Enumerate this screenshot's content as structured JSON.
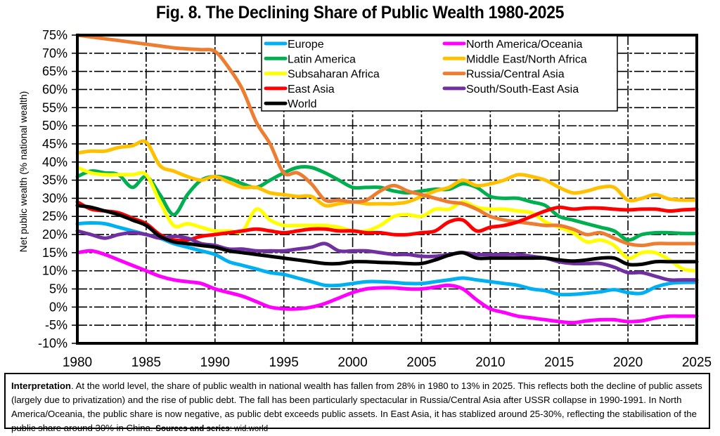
{
  "chart_data": {
    "type": "line",
    "title": "Fig. 8. The Declining Share of Public Wealth 1980-2025",
    "xlabel": "",
    "ylabel": "Net public wealth (% national wealth)",
    "xlim": [
      1980,
      2025
    ],
    "ylim": [
      -10,
      75
    ],
    "x_ticks": [
      1980,
      1985,
      1990,
      1995,
      2000,
      2005,
      2010,
      2015,
      2020,
      2025
    ],
    "x_tick_labels": [
      "1980",
      "1985",
      "1990",
      "1995",
      "2000",
      "2005",
      "2010",
      "2015",
      "2020",
      "2025"
    ],
    "y_ticks": [
      -10,
      -5,
      0,
      5,
      10,
      15,
      20,
      25,
      30,
      35,
      40,
      45,
      50,
      55,
      60,
      65,
      70,
      75
    ],
    "y_tick_labels": [
      "-10%",
      "-5%",
      "0%",
      "5%",
      "10%",
      "15%",
      "20%",
      "25%",
      "30%",
      "35%",
      "40%",
      "45%",
      "50%",
      "55%",
      "60%",
      "65%",
      "70%",
      "75%"
    ],
    "grid": true,
    "legend_position": "top-center",
    "x": [
      1980,
      1981,
      1982,
      1983,
      1984,
      1985,
      1986,
      1987,
      1988,
      1989,
      1990,
      1991,
      1992,
      1993,
      1994,
      1995,
      1996,
      1997,
      1998,
      1999,
      2000,
      2001,
      2002,
      2003,
      2004,
      2005,
      2006,
      2007,
      2008,
      2009,
      2010,
      2011,
      2012,
      2013,
      2014,
      2015,
      2016,
      2017,
      2018,
      2019,
      2020,
      2021,
      2022,
      2023,
      2024,
      2025
    ],
    "series": [
      {
        "name": "Europe",
        "color": "#00b0f0",
        "values": [
          23,
          23.2,
          23,
          22,
          21,
          20,
          19,
          17.5,
          16.5,
          15.5,
          14.5,
          12.5,
          11.5,
          10.5,
          9.5,
          9,
          8,
          7,
          6,
          6,
          6.5,
          7,
          7,
          6.8,
          6.5,
          6.5,
          7,
          7.5,
          8,
          7.5,
          7,
          6.5,
          6,
          5,
          4.5,
          3.5,
          3.5,
          3.8,
          4.2,
          4.8,
          4,
          3.8,
          5.5,
          6.5,
          6.8,
          6.8
        ]
      },
      {
        "name": "North America/Oceania",
        "color": "#ff00ff",
        "values": [
          15,
          15.5,
          14.5,
          13,
          11.5,
          10,
          8.5,
          7.5,
          7,
          6.5,
          5,
          4,
          3,
          1.5,
          0,
          -0.5,
          -0.5,
          0,
          1,
          2.5,
          4,
          5,
          5.3,
          5.3,
          5,
          5,
          5.5,
          6,
          5,
          2,
          -0.5,
          -1.5,
          -2.5,
          -3,
          -3.5,
          -4,
          -4.3,
          -3.8,
          -3.5,
          -3.5,
          -4,
          -3.8,
          -3,
          -2.5,
          -2.5,
          -2.5
        ]
      },
      {
        "name": "Latin America",
        "color": "#00b050",
        "values": [
          36,
          37.5,
          37,
          36.5,
          33,
          36,
          31,
          25.5,
          31,
          35,
          36,
          35.5,
          34,
          33,
          35,
          37,
          38.5,
          38.5,
          37,
          35,
          33,
          33,
          33,
          32,
          31.5,
          32,
          32.5,
          32.5,
          34,
          33,
          30.5,
          30,
          30,
          29,
          28,
          25,
          24,
          23,
          22,
          21,
          18.5,
          20,
          20.5,
          20.5,
          20.3,
          20.3
        ]
      },
      {
        "name": "Middle East/North Africa",
        "color": "#ffc000",
        "values": [
          42.5,
          43,
          43,
          44,
          44.5,
          45.5,
          39,
          37.5,
          36,
          35,
          36,
          34.5,
          33,
          33,
          31.5,
          31,
          30.5,
          30.5,
          28,
          28.5,
          29,
          28.5,
          28.5,
          28.5,
          29,
          30.5,
          32,
          33,
          35,
          33.5,
          34,
          35,
          36.5,
          36,
          35,
          33,
          31.5,
          32,
          33,
          33,
          29.5,
          30,
          31,
          29.8,
          29.5,
          29.5
        ]
      },
      {
        "name": "Subsaharan Africa",
        "color": "#ffff00",
        "values": [
          38.5,
          37,
          36.5,
          36.5,
          36.5,
          36.5,
          29,
          22.5,
          23,
          22,
          21,
          21,
          21,
          27,
          24,
          22.5,
          22.5,
          22.5,
          22.5,
          22,
          21,
          21,
          22.5,
          25,
          25.5,
          25,
          27,
          27,
          29,
          27.5,
          27,
          27,
          26.5,
          26,
          23.5,
          22,
          20.5,
          18,
          18.5,
          17,
          13.5,
          15,
          15,
          13,
          10.5,
          10
        ]
      },
      {
        "name": "Russia/Central Asia",
        "color": "#ed7d31",
        "values": [
          75,
          74.5,
          74,
          73.5,
          73,
          72.5,
          72,
          71.5,
          71.2,
          71,
          70.5,
          66,
          60,
          51,
          45,
          37,
          37,
          34,
          29.5,
          29.5,
          29,
          29.5,
          32,
          33.5,
          32,
          31,
          30,
          29,
          28.5,
          27,
          25,
          24,
          23.5,
          23,
          22.5,
          22.5,
          21.5,
          20,
          20.5,
          19,
          17.5,
          17,
          17.5,
          17.5,
          17.5,
          17.5
        ]
      },
      {
        "name": "East Asia",
        "color": "#ff0000",
        "values": [
          29,
          27,
          26.5,
          26,
          24.5,
          23,
          20,
          18.5,
          18.5,
          19.5,
          20,
          20.5,
          21,
          21.5,
          21,
          20.5,
          21,
          21.5,
          21.5,
          21,
          21,
          20.5,
          20.5,
          20,
          20,
          20.5,
          21,
          23.5,
          24,
          21,
          22,
          22.5,
          23.5,
          25,
          26.5,
          27.5,
          27,
          27.3,
          27.3,
          27,
          26.8,
          27,
          27,
          26.5,
          26.8,
          27
        ]
      },
      {
        "name": "South/South-East Asia",
        "color": "#7030a0",
        "values": [
          21,
          20,
          19,
          20,
          20.5,
          20,
          19,
          19.5,
          19,
          17.5,
          17,
          16,
          16,
          15.5,
          15.5,
          15.5,
          16,
          16.5,
          17.5,
          15.5,
          15.5,
          15.5,
          15,
          14.5,
          14.5,
          14,
          14,
          14.5,
          15,
          14.5,
          14.5,
          14.5,
          14.5,
          14,
          13.5,
          12.5,
          12,
          12,
          12,
          11,
          9.5,
          9.5,
          8.5,
          7.5,
          7.5,
          7.5
        ]
      },
      {
        "name": "World",
        "color": "#000000",
        "values": [
          28,
          27.5,
          26.5,
          25.5,
          24,
          22.5,
          19.5,
          18,
          17.5,
          17,
          16.5,
          15.5,
          15,
          14.5,
          14,
          13.5,
          13,
          12.5,
          12,
          12,
          12.5,
          12.5,
          12.3,
          12.2,
          12,
          12,
          13,
          14.3,
          15,
          13.5,
          13.5,
          13.5,
          13.5,
          13.5,
          13.5,
          13,
          12.7,
          13,
          13.5,
          13.5,
          11.8,
          11.8,
          12.5,
          12.5,
          12.5,
          12.5
        ]
      }
    ],
    "legend_columns": [
      [
        "Europe",
        "Latin America",
        "Subsaharan Africa",
        "East Asia",
        "World"
      ],
      [
        "North America/Oceania",
        "Middle East/North Africa",
        "Russia/Central Asia",
        "South/South-East Asia"
      ]
    ]
  },
  "interpretation": {
    "lead": "Interpretation",
    "body": ". At the world level, the share of public wealth in national wealth has fallen from 28% in 1980 to 13% in 2025. This reflects both the decline of public assets (largely due to privatization) and the rise of public debt. The fall has been particularly spectacular in Russia/Central Asia after USSR collapse in 1990-1991. In North America/Oceania, the public share is now negative, as public debt exceeds public assets. In East Asia, it has stablized around 25-30%, reflecting the stabilisation of the public share around 30% in China. ",
    "sources_label": "Sources and series",
    "sources_value": ": wid.world"
  }
}
